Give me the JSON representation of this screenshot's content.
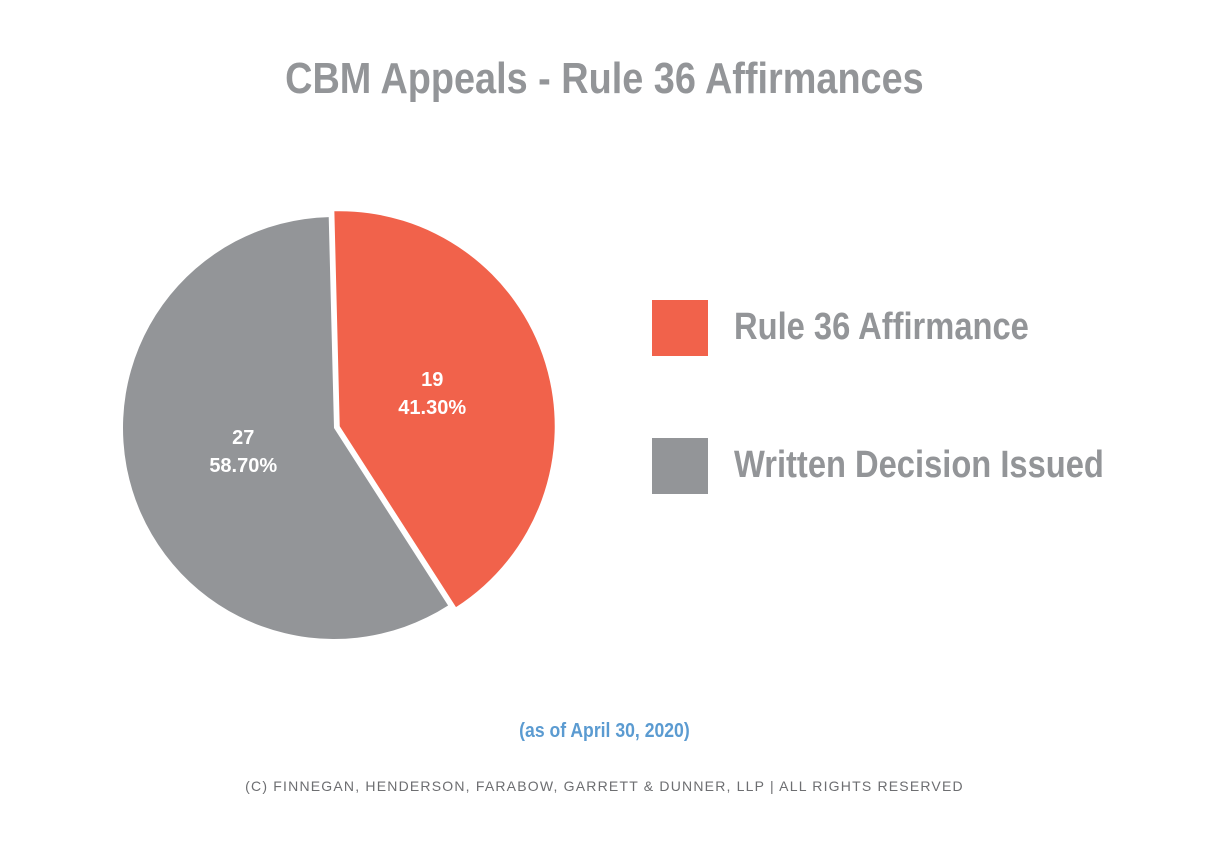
{
  "chart_data": {
    "type": "pie",
    "title": "CBM Appeals - Rule 36 Affirmances",
    "categories": [
      "Rule 36 Affirmance",
      "Written Decision Issued"
    ],
    "values": [
      19,
      27
    ],
    "value_labels": [
      "19",
      "27"
    ],
    "percent_labels": [
      "41.30%",
      "58.70%"
    ],
    "colors": [
      "#f1624b",
      "#939598"
    ],
    "legend_position": "right",
    "subtitle": "(as of April 30, 2020)"
  },
  "footer": "(c) finnegan, henderson, farabow, garrett & dunner, llp | all rights reserved"
}
